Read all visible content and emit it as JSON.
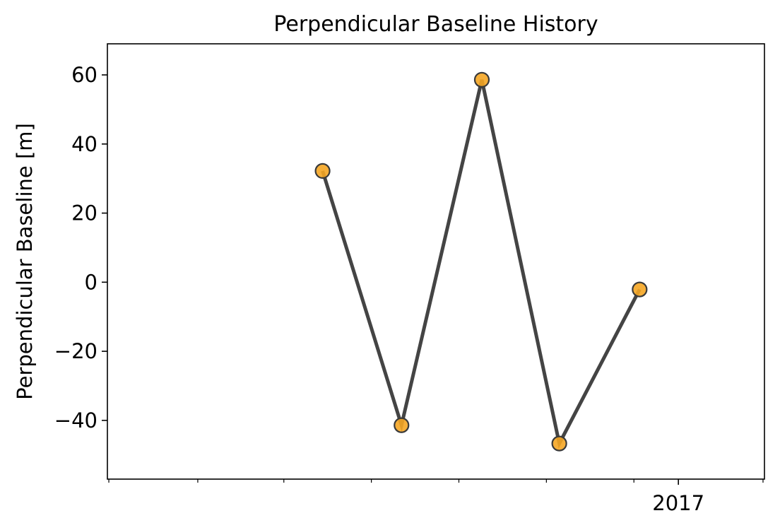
{
  "chart_data": {
    "type": "line",
    "title": "Perpendicular Baseline History",
    "xlabel": "",
    "ylabel": "Perpendicular Baseline [m]",
    "x": [
      "2016-04-28",
      "2016-06-22",
      "2016-08-17",
      "2016-10-10",
      "2016-12-05"
    ],
    "series": [
      {
        "values": [
          32.2,
          -41.4,
          58.6,
          -46.7,
          -2.1
        ]
      }
    ],
    "xlim": [
      "2015-11-30",
      "2017-03-02"
    ],
    "ylim": [
      -57,
      69
    ],
    "yticks": [
      -40,
      -20,
      0,
      20,
      40,
      60
    ],
    "xticks_major": [
      {
        "date": "2017-01-01",
        "label": "2017"
      }
    ],
    "xticks_minor": [
      "2015-12-01",
      "2016-02-01",
      "2016-04-01",
      "2016-06-01",
      "2016-08-01",
      "2016-10-01",
      "2016-12-01",
      "2017-03-01"
    ],
    "grid": false,
    "colors": {
      "line": "#444444",
      "marker_fill": "#f5a623",
      "marker_edge": "#3a3a3a"
    }
  }
}
